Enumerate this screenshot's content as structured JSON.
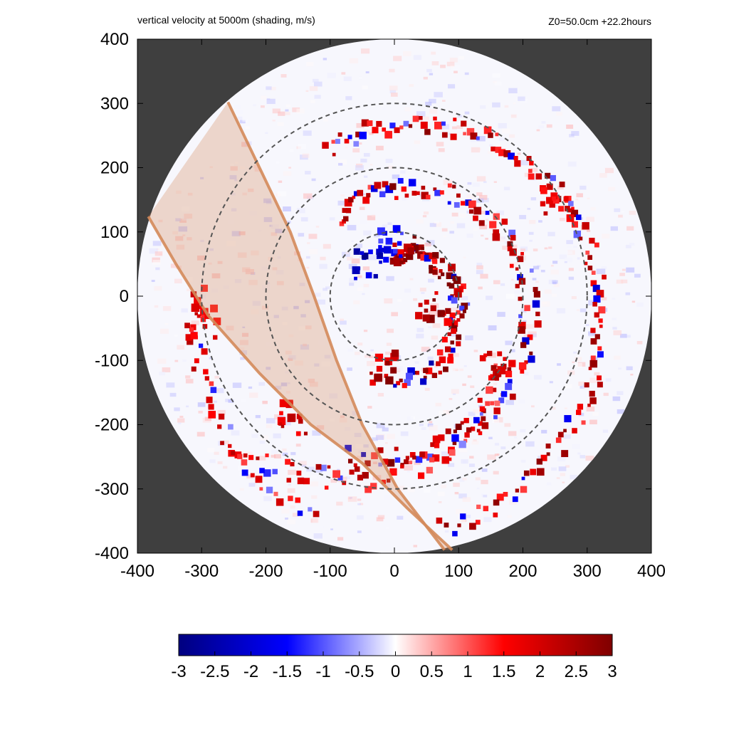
{
  "header": {
    "title": "vertical velocity at 5000m (shading, m/s)",
    "info": "Z0=50.0cm  +22.2hours"
  },
  "chart_data": {
    "type": "heatmap",
    "title": "vertical velocity at 5000m (shading, m/s)",
    "annotation": "Z0=50.0cm  +22.2hours",
    "xlabel": "",
    "ylabel": "",
    "xlim": [
      -400,
      400
    ],
    "ylim": [
      -400,
      400
    ],
    "x_ticks": [
      -400,
      -300,
      -200,
      -100,
      0,
      100,
      200,
      300,
      400
    ],
    "y_ticks": [
      -400,
      -300,
      -200,
      -100,
      0,
      100,
      200,
      300,
      400
    ],
    "domain_radius": 400,
    "range_rings": [
      100,
      200,
      300
    ],
    "colorbar": {
      "range": [
        -3,
        3
      ],
      "ticks": [
        "-3",
        "-2.5",
        "-2",
        "-1.5",
        "-1",
        "-0.5",
        "0",
        "0.5",
        "1",
        "1.5",
        "2",
        "2.5",
        "3"
      ],
      "colors": [
        "#00007f",
        "#0000ff",
        "#ffffff",
        "#ff0000",
        "#7f0000"
      ]
    },
    "background_color": "#3f3f3f",
    "overlay_band": {
      "color": "#d4895a",
      "edge1": [
        [
          -259,
          302
        ],
        [
          -210,
          200
        ],
        [
          -162,
          100
        ],
        [
          -125,
          0
        ],
        [
          -90,
          -100
        ],
        [
          -50,
          -200
        ],
        [
          5,
          -300
        ],
        [
          78,
          -395
        ]
      ],
      "edge2": [
        [
          -383,
          124
        ],
        [
          -340,
          50
        ],
        [
          -290,
          -30
        ],
        [
          -210,
          -120
        ],
        [
          -130,
          -200
        ],
        [
          -50,
          -260
        ],
        [
          20,
          -330
        ],
        [
          90,
          -395
        ]
      ]
    },
    "features": [
      {
        "kind": "updraft",
        "x": 60,
        "y": -20,
        "w": 3.0
      },
      {
        "kind": "updraft",
        "x": 20,
        "y": 70,
        "w": 3.0
      },
      {
        "kind": "updraft",
        "x": -20,
        "y": -110,
        "w": 3.0
      },
      {
        "kind": "downdraft",
        "x": -45,
        "y": 50,
        "w": -3.0
      },
      {
        "kind": "downdraft",
        "x": -10,
        "y": 80,
        "w": -2.0
      },
      {
        "kind": "updraft",
        "x": -300,
        "y": -40,
        "w": 2.5
      },
      {
        "kind": "updraft",
        "x": -160,
        "y": -190,
        "w": 2.5
      },
      {
        "kind": "updraft",
        "x": 160,
        "y": -110,
        "w": 2.5
      },
      {
        "kind": "updraft",
        "x": 255,
        "y": 145,
        "w": 2.5
      }
    ]
  }
}
